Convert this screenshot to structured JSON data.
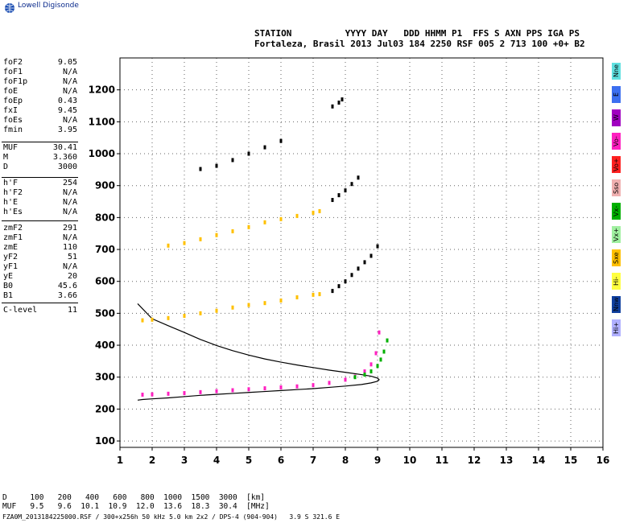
{
  "brand": {
    "name": "Lowell Digisonde"
  },
  "header": {
    "labels": "STATION          YYYY DAY   DDD HHMM P1  FFS S AXN PPS IGA PS",
    "values": "Fortaleza, Brasil 2013 Jul03 184 2250 RSF 005 2 713 100 +0+ B2"
  },
  "params": [
    {
      "label": "foF2",
      "value": "9.05"
    },
    {
      "label": "foF1",
      "value": "N/A"
    },
    {
      "label": "foF1p",
      "value": "N/A"
    },
    {
      "label": "foE",
      "value": "N/A"
    },
    {
      "label": "foEp",
      "value": "0.43"
    },
    {
      "label": "fxI",
      "value": "9.45"
    },
    {
      "label": "foEs",
      "value": "N/A"
    },
    {
      "label": "fmin",
      "value": "3.95"
    },
    {
      "label": "MUF",
      "value": "30.41"
    },
    {
      "label": "M",
      "value": "3.360"
    },
    {
      "label": "D",
      "value": "3000"
    },
    {
      "label": "h'F",
      "value": "254"
    },
    {
      "label": "h'F2",
      "value": "N/A"
    },
    {
      "label": "h'E",
      "value": "N/A"
    },
    {
      "label": "h'Es",
      "value": "N/A"
    },
    {
      "label": "zmF2",
      "value": "291"
    },
    {
      "label": "zmF1",
      "value": "N/A"
    },
    {
      "label": "zmE",
      "value": "110"
    },
    {
      "label": "yF2",
      "value": "51"
    },
    {
      "label": "yF1",
      "value": "N/A"
    },
    {
      "label": "yE",
      "value": "20"
    },
    {
      "label": "B0",
      "value": "45.6"
    },
    {
      "label": "B1",
      "value": "3.66"
    },
    {
      "label": "C-level",
      "value": "11"
    }
  ],
  "legend": [
    {
      "label": "Nne",
      "color": "#5fe0e0"
    },
    {
      "label": "E",
      "color": "#3c6ff0"
    },
    {
      "label": "W",
      "color": "#a000c0"
    },
    {
      "label": "Vo-",
      "color": "#ff20c0"
    },
    {
      "label": "Vo+",
      "color": "#ff2020"
    },
    {
      "label": "Sso",
      "color": "#f0b0b0"
    },
    {
      "label": "Vx-",
      "color": "#00b000"
    },
    {
      "label": "Vx+",
      "color": "#a0f0a0"
    },
    {
      "label": "Sxe",
      "color": "#ffc000"
    },
    {
      "label": "Hi-",
      "color": "#ffff40"
    },
    {
      "label": "Nnw",
      "color": "#1040a0"
    },
    {
      "label": "Hi+",
      "color": "#b0b0ff"
    }
  ],
  "footer": {
    "d_row": "D     100   200   400   600   800  1000  1500  3000  [km]",
    "muf_row": "MUF   9.5   9.6  10.1  10.9  12.0  13.6  18.3  30.4  [MHz]",
    "file_line": "FZA0M_2013184225000.RSF / 300+x256h 50 kHz 5.0 km 2x2 / DPS-4 (904-904)   3.9 S 321.6 E"
  },
  "chart_data": {
    "type": "scatter",
    "xlim": [
      1,
      16
    ],
    "ylim": [
      80,
      1300
    ],
    "x_ticks": [
      "1",
      "2",
      "3",
      "4",
      "5",
      "6",
      "7",
      "8",
      "9",
      "10",
      "11",
      "12",
      "13",
      "14",
      "15",
      "16"
    ],
    "y_ticks": [
      "100",
      "200",
      "300",
      "400",
      "500",
      "600",
      "700",
      "800",
      "900",
      "1000",
      "1100",
      "1200"
    ],
    "grid": true,
    "series": [
      {
        "x": [
          1.7,
          2,
          2.5,
          3,
          3.5,
          4,
          4.5,
          5,
          5.5,
          6,
          6.5,
          7,
          7.5,
          8,
          8.3,
          8.6,
          8.8,
          8.95,
          9.05
        ],
        "y": [
          245,
          246,
          248,
          250,
          253,
          256,
          259,
          262,
          265,
          268,
          271,
          275,
          282,
          292,
          302,
          318,
          340,
          375,
          440
        ],
        "color": "#ff20c0"
      },
      {
        "x": [
          8.3,
          8.6,
          8.8,
          9.0,
          9.1,
          9.2,
          9.3
        ],
        "y": [
          300,
          308,
          318,
          335,
          355,
          380,
          415
        ],
        "color": "#00b000"
      },
      {
        "x": [
          1.7,
          2,
          2.5,
          3,
          3.5,
          4,
          4.5,
          5,
          5.5,
          6,
          6.5,
          7,
          7.2
        ],
        "y": [
          478,
          480,
          485,
          492,
          500,
          508,
          518,
          526,
          532,
          540,
          550,
          558,
          560
        ],
        "color": "#ffc000"
      },
      {
        "x": [
          7.6,
          7.8,
          8,
          8.2,
          8.4,
          8.6,
          8.8,
          9
        ],
        "y": [
          570,
          585,
          600,
          620,
          640,
          660,
          680,
          710
        ],
        "color": "#000000"
      },
      {
        "x": [
          2.5,
          3,
          3.5,
          4,
          4.5,
          5,
          5.5,
          6,
          6.5,
          7,
          7.2
        ],
        "y": [
          712,
          720,
          732,
          745,
          757,
          770,
          785,
          795,
          805,
          815,
          820
        ],
        "color": "#ffc000"
      },
      {
        "x": [
          7.6,
          7.8,
          8,
          8.2,
          8.4
        ],
        "y": [
          855,
          870,
          885,
          905,
          925
        ],
        "color": "#000000"
      },
      {
        "x": [
          3.5,
          4,
          4.5,
          5,
          5.5,
          6
        ],
        "y": [
          952,
          962,
          980,
          1000,
          1020,
          1040
        ],
        "color": "#000000"
      },
      {
        "x": [
          7.6,
          7.8,
          7.9
        ],
        "y": [
          1148,
          1160,
          1170
        ],
        "color": "#000000"
      }
    ],
    "profile": {
      "x": [
        1.55,
        1.7,
        2.0,
        2.5,
        3,
        3.5,
        4,
        4.5,
        5,
        5.5,
        6,
        6.5,
        7,
        7.5,
        8,
        8.5,
        8.8,
        9.0,
        9.05,
        9.0,
        8.8,
        8.5,
        8,
        7.5,
        7,
        6.5,
        6,
        5.5,
        5,
        4.5,
        4,
        3.5,
        3,
        2.5,
        2.0,
        1.55
      ],
      "y": [
        228,
        230,
        232,
        235,
        239,
        243,
        246,
        249,
        252,
        255,
        258,
        261,
        264,
        268,
        272,
        277,
        282,
        287,
        292,
        297,
        303,
        308,
        315,
        322,
        330,
        338,
        347,
        357,
        369,
        383,
        399,
        418,
        440,
        461,
        483,
        530
      ],
      "color": "#000000"
    }
  }
}
